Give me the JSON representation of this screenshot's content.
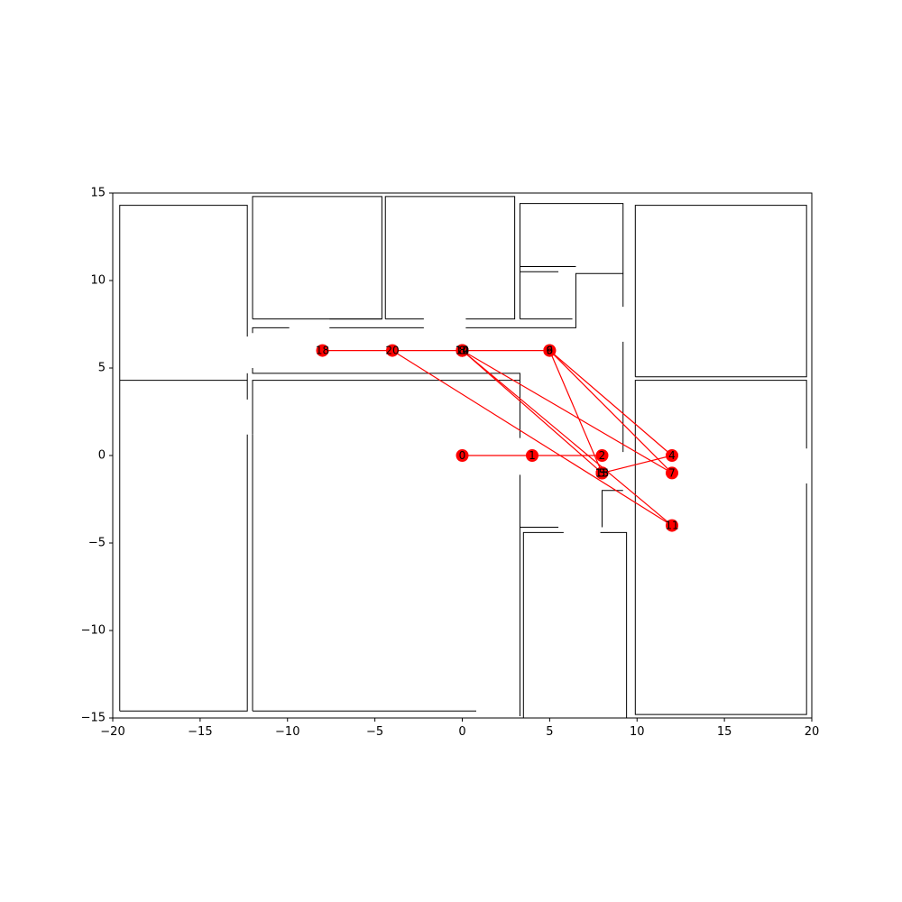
{
  "chart_data": {
    "type": "scatter",
    "title": "",
    "xlabel": "",
    "ylabel": "",
    "xlim": [
      -20,
      20
    ],
    "ylim": [
      -15,
      15
    ],
    "grid": false,
    "xticks": [
      "-20",
      "-15",
      "-10",
      "-5",
      "0",
      "5",
      "10",
      "15",
      "20"
    ],
    "yticks": [
      "15",
      "10",
      "5",
      "0",
      "-5",
      "-10",
      "-15"
    ],
    "colors": {
      "graph": "#ff0000",
      "walls": "#000000"
    },
    "nodes": [
      {
        "id": "0",
        "x": 0,
        "y": 0
      },
      {
        "id": "1",
        "x": 4,
        "y": 0
      },
      {
        "id": "2",
        "x": 8,
        "y": 0
      },
      {
        "id": "3",
        "x": 8,
        "y": -1
      },
      {
        "id": "4",
        "x": 12,
        "y": 0
      },
      {
        "id": "5",
        "x": 8,
        "y": -1
      },
      {
        "id": "6",
        "x": 5,
        "y": 6
      },
      {
        "id": "7",
        "x": 12,
        "y": -1
      },
      {
        "id": "8",
        "x": 0,
        "y": 6
      },
      {
        "id": "9",
        "x": 5,
        "y": 6
      },
      {
        "id": "10",
        "x": 0,
        "y": 6
      },
      {
        "id": "11",
        "x": 12,
        "y": -4
      },
      {
        "id": "12",
        "x": 0,
        "y": 6
      },
      {
        "id": "13",
        "x": 8,
        "y": -1
      },
      {
        "id": "14",
        "x": 0,
        "y": 6
      },
      {
        "id": "15",
        "x": 8,
        "y": -1
      },
      {
        "id": "18",
        "x": -8,
        "y": 6
      },
      {
        "id": "20",
        "x": -4,
        "y": 6
      }
    ],
    "edges": [
      [
        0,
        0,
        4,
        0
      ],
      [
        4,
        0,
        8,
        0
      ],
      [
        -8,
        6,
        5,
        6
      ],
      [
        -4,
        6,
        12,
        -4
      ],
      [
        0,
        6,
        12,
        -1
      ],
      [
        0,
        6,
        8,
        -1
      ],
      [
        0,
        6,
        12,
        -4
      ],
      [
        5,
        6,
        12,
        0
      ],
      [
        5,
        6,
        12,
        -1
      ],
      [
        5,
        6,
        8,
        -1
      ],
      [
        8,
        -1,
        12,
        0
      ]
    ],
    "walls": [
      [
        [
          -19.6,
          -14.6
        ],
        [
          -19.6,
          14.3
        ],
        [
          -12.3,
          14.3
        ],
        [
          -12.3,
          6.8
        ]
      ],
      [
        [
          -12.3,
          3.2
        ],
        [
          -12.3,
          4.7
        ]
      ],
      [
        [
          -12.3,
          1.2
        ],
        [
          -12.3,
          -14.6
        ],
        [
          -19.6,
          -14.6
        ]
      ],
      [
        [
          -19.6,
          4.3
        ],
        [
          -12.3,
          4.3
        ]
      ],
      [
        [
          -12.0,
          7.0
        ],
        [
          -12.0,
          7.3
        ],
        [
          -9.9,
          7.3
        ]
      ],
      [
        [
          -7.6,
          7.3
        ],
        [
          -2.2,
          7.3
        ]
      ],
      [
        [
          0.2,
          7.3
        ],
        [
          6.5,
          7.3
        ],
        [
          6.5,
          10.4
        ],
        [
          9.2,
          10.4
        ],
        [
          9.2,
          8.5
        ]
      ],
      [
        [
          9.2,
          6.5
        ],
        [
          9.2,
          0.2
        ]
      ],
      [
        [
          -12.0,
          5.0
        ],
        [
          -12.0,
          4.7
        ],
        [
          3.3,
          4.7
        ],
        [
          3.3,
          1.0
        ]
      ],
      [
        [
          -12.0,
          1.2
        ],
        [
          -12.0,
          4.3
        ],
        [
          3.3,
          4.3
        ]
      ],
      [
        [
          -12.0,
          -14.6
        ],
        [
          -12.0,
          1.2
        ]
      ],
      [
        [
          -12.0,
          -14.6
        ],
        [
          0.8,
          -14.6
        ]
      ],
      [
        [
          -12.0,
          7.8
        ],
        [
          -12.0,
          14.8
        ],
        [
          -4.6,
          14.8
        ],
        [
          -4.6,
          7.8
        ],
        [
          -9.6,
          7.8
        ]
      ],
      [
        [
          -12.0,
          7.8
        ],
        [
          -9.6,
          7.8
        ]
      ],
      [
        [
          -7.6,
          7.8
        ],
        [
          -4.6,
          7.8
        ]
      ],
      [
        [
          -4.4,
          7.8
        ],
        [
          -4.4,
          14.8
        ],
        [
          3.0,
          14.8
        ],
        [
          3.0,
          7.8
        ],
        [
          0.2,
          7.8
        ]
      ],
      [
        [
          -4.4,
          7.8
        ],
        [
          -2.2,
          7.8
        ]
      ],
      [
        [
          3.3,
          7.8
        ],
        [
          3.3,
          14.4
        ],
        [
          9.2,
          14.4
        ],
        [
          9.2,
          10.4
        ]
      ],
      [
        [
          3.3,
          7.8
        ],
        [
          6.3,
          7.8
        ]
      ],
      [
        [
          3.3,
          10.8
        ],
        [
          6.5,
          10.8
        ]
      ],
      [
        [
          3.3,
          10.5
        ],
        [
          5.5,
          10.5
        ]
      ],
      [
        [
          3.3,
          -1.1
        ],
        [
          3.3,
          -14.9
        ]
      ],
      [
        [
          3.3,
          -4.1
        ],
        [
          5.5,
          -4.1
        ]
      ],
      [
        [
          3.5,
          -15.0
        ],
        [
          3.5,
          -4.4
        ],
        [
          5.8,
          -4.4
        ]
      ],
      [
        [
          7.9,
          -4.4
        ],
        [
          9.4,
          -4.4
        ],
        [
          9.4,
          -15.0
        ],
        [
          3.5,
          -15.0
        ]
      ],
      [
        [
          8.0,
          -4.1
        ],
        [
          8.0,
          -2.0
        ],
        [
          9.2,
          -2.0
        ]
      ],
      [
        [
          9.9,
          4.5
        ],
        [
          9.9,
          14.3
        ],
        [
          19.7,
          14.3
        ],
        [
          19.7,
          4.5
        ],
        [
          9.9,
          4.5
        ]
      ],
      [
        [
          9.9,
          -2.0
        ],
        [
          9.9,
          4.3
        ],
        [
          19.7,
          4.3
        ],
        [
          19.7,
          0.4
        ]
      ],
      [
        [
          19.7,
          -1.6
        ],
        [
          19.7,
          -14.8
        ],
        [
          9.9,
          -14.8
        ],
        [
          9.9,
          -2.0
        ]
      ]
    ]
  }
}
